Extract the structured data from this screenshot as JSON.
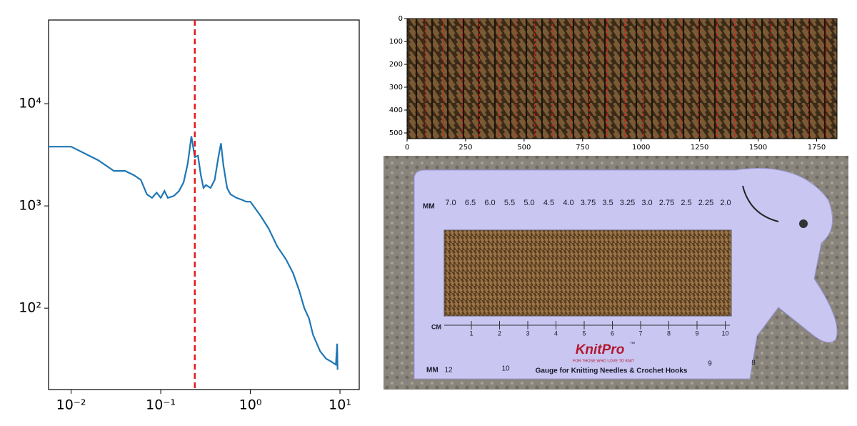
{
  "chart_data": [
    {
      "type": "line",
      "color": "#1f77b4",
      "log_x": true,
      "log_y": true,
      "xlim": [
        0.0056,
        16.4
      ],
      "ylim": [
        16,
        65800
      ],
      "xticks": [
        {
          "value": 0.01,
          "label": "10⁻²"
        },
        {
          "value": 0.1,
          "label": "10⁻¹"
        },
        {
          "value": 1,
          "label": "10⁰"
        },
        {
          "value": 10,
          "label": "10¹"
        }
      ],
      "yticks": [
        {
          "value": 100,
          "label": "10²"
        },
        {
          "value": 1000,
          "label": "10³"
        },
        {
          "value": 10000,
          "label": "10⁴"
        }
      ],
      "vline": 0.24,
      "vline_color": "#e41a1c",
      "x": [
        0.0056,
        0.01,
        0.02,
        0.03,
        0.04,
        0.05,
        0.06,
        0.07,
        0.08,
        0.09,
        0.1,
        0.11,
        0.12,
        0.14,
        0.16,
        0.18,
        0.2,
        0.22,
        0.24,
        0.26,
        0.28,
        0.3,
        0.32,
        0.36,
        0.4,
        0.44,
        0.47,
        0.5,
        0.55,
        0.6,
        0.7,
        0.8,
        0.9,
        1.0,
        1.3,
        1.6,
        2,
        2.5,
        3,
        3.5,
        4,
        4.5,
        5,
        6,
        7,
        8,
        9,
        9.3,
        9.4
      ],
      "values": [
        3800,
        3800,
        2800,
        2200,
        2200,
        2000,
        1800,
        1300,
        1200,
        1350,
        1200,
        1400,
        1200,
        1250,
        1400,
        1700,
        2600,
        4800,
        3000,
        3100,
        2000,
        1500,
        1600,
        1500,
        1800,
        3000,
        4100,
        2500,
        1500,
        1300,
        1200,
        1150,
        1100,
        1100,
        800,
        600,
        400,
        300,
        220,
        150,
        100,
        80,
        55,
        38,
        32,
        30,
        28,
        45,
        25
      ]
    },
    {
      "type": "image",
      "xlim": [
        0,
        1837
      ],
      "ylim": [
        525,
        0
      ],
      "xticks": [
        0,
        250,
        500,
        750,
        1000,
        1250,
        1500,
        1750
      ],
      "yticks": [
        0,
        100,
        200,
        300,
        400,
        500
      ],
      "vline_color": "#e41a1c",
      "vlines": [
        80,
        155,
        235,
        310,
        390,
        465,
        545,
        620,
        700,
        780,
        855,
        930,
        1010,
        1090,
        1170,
        1245,
        1325,
        1400,
        1480,
        1555,
        1635,
        1715,
        1790
      ]
    }
  ],
  "photo": {
    "mm_top": "MM",
    "sizes_top": [
      "7.0",
      "6.5",
      "6.0",
      "5.5",
      "5.0",
      "4.5",
      "4.0",
      "3.75",
      "3.5",
      "3.25",
      "3.0",
      "2.75",
      "2.5",
      "2.25",
      "2.0"
    ],
    "cm": "CM",
    "ruler": [
      "1",
      "2",
      "3",
      "4",
      "5",
      "6",
      "7",
      "8",
      "9",
      "10"
    ],
    "mm_bottom": "MM",
    "sizes_bottom": [
      "12",
      "10",
      "9",
      "8"
    ],
    "brand": "KnitPro",
    "tm": "™",
    "tagline": "FOR THOSE WHO LOVE TO KNIT",
    "caption": "Gauge for Knitting Needles & Crochet Hooks"
  }
}
